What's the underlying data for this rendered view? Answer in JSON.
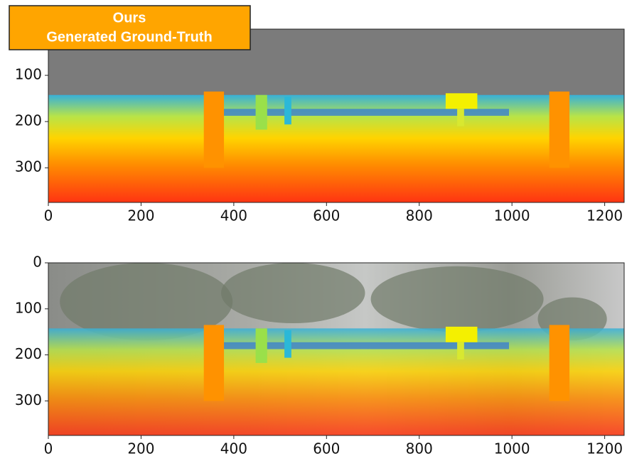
{
  "annotation": [
    "Ours",
    "Generated Ground-Truth"
  ],
  "chart_data": [
    {
      "type": "image",
      "xlim": [
        0,
        1242
      ],
      "ylim": [
        375,
        0
      ],
      "xticks": [
        0,
        200,
        400,
        600,
        800,
        1000,
        1200
      ],
      "yticks": [
        100,
        200,
        300
      ]
    },
    {
      "type": "image",
      "xlim": [
        0,
        1242
      ],
      "ylim": [
        375,
        0
      ],
      "xticks": [
        0,
        200,
        400,
        600,
        800,
        1000,
        1200
      ],
      "yticks": [
        0,
        100,
        200,
        300
      ]
    }
  ]
}
